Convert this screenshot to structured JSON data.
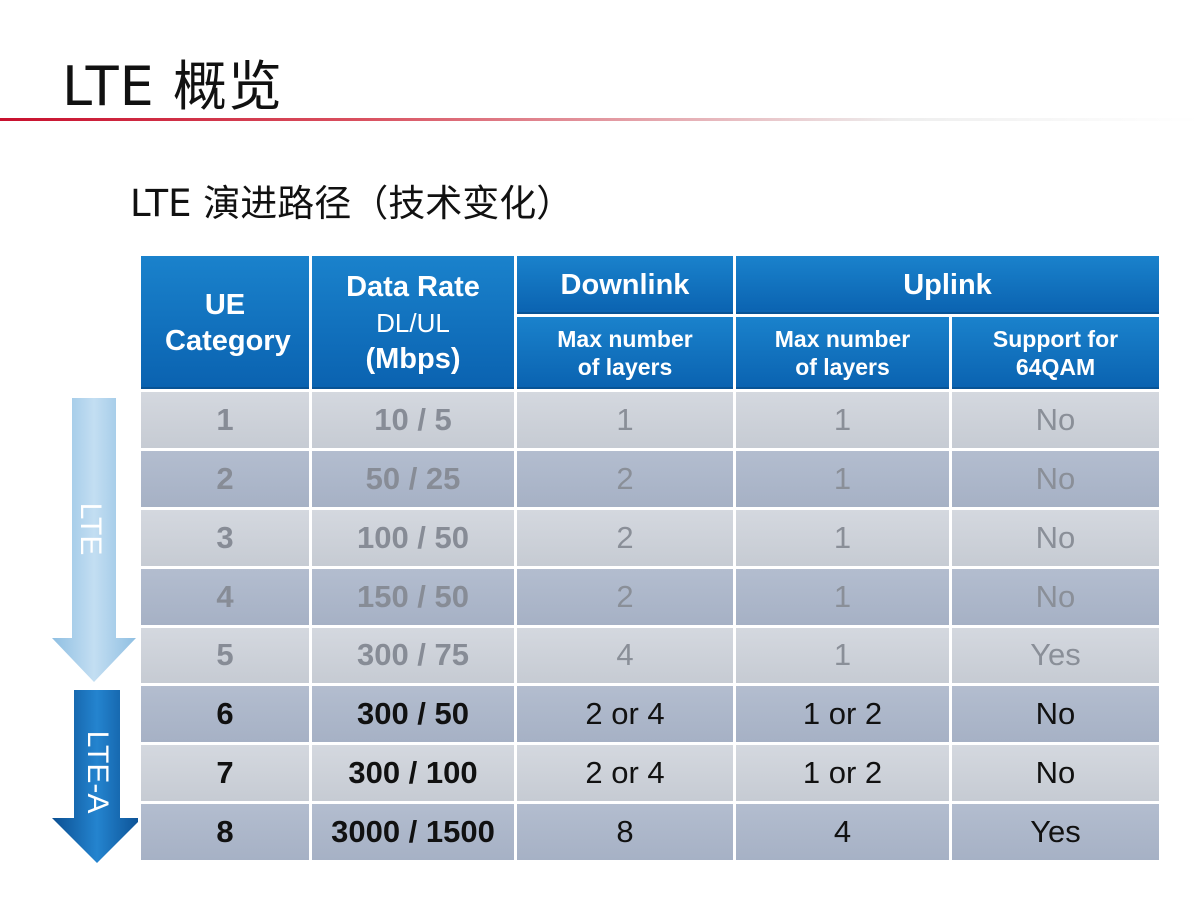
{
  "slide": {
    "title": "LTE 概览",
    "subtitle": "LTE 演进路径（技术变化）"
  },
  "arrows": {
    "lte_label": "LTE",
    "ltea_label": "LTE-A",
    "lte_color": "#a9cde8",
    "ltea_color": "#0f66b3"
  },
  "table": {
    "headers": {
      "category": "UE Category",
      "data_rate_1": "Data Rate",
      "data_rate_2": "DL/UL",
      "data_rate_3": "(Mbps)",
      "downlink": "Downlink",
      "uplink": "Uplink",
      "dl_layers": "Max  number of layers",
      "ul_layers": "Max  number of layers",
      "ul_64qam": "Support for 64QAM"
    },
    "rows": [
      {
        "category": "1",
        "rate": "10 / 5",
        "dl_layers": "1",
        "ul_layers": "1",
        "qam": "No"
      },
      {
        "category": "2",
        "rate": "50 / 25",
        "dl_layers": "2",
        "ul_layers": "1",
        "qam": "No"
      },
      {
        "category": "3",
        "rate": "100 / 50",
        "dl_layers": "2",
        "ul_layers": "1",
        "qam": "No"
      },
      {
        "category": "4",
        "rate": "150 / 50",
        "dl_layers": "2",
        "ul_layers": "1",
        "qam": "No"
      },
      {
        "category": "5",
        "rate": "300 / 75",
        "dl_layers": "4",
        "ul_layers": "1",
        "qam": "Yes"
      },
      {
        "category": "6",
        "rate": "300 / 50",
        "dl_layers": "2 or 4",
        "ul_layers": "1 or 2",
        "qam": "No"
      },
      {
        "category": "7",
        "rate": "300 / 100",
        "dl_layers": "2 or 4",
        "ul_layers": "1 or 2",
        "qam": "No"
      },
      {
        "category": "8",
        "rate": "3000 / 1500",
        "dl_layers": "8",
        "ul_layers": "4",
        "qam": "Yes"
      }
    ]
  }
}
